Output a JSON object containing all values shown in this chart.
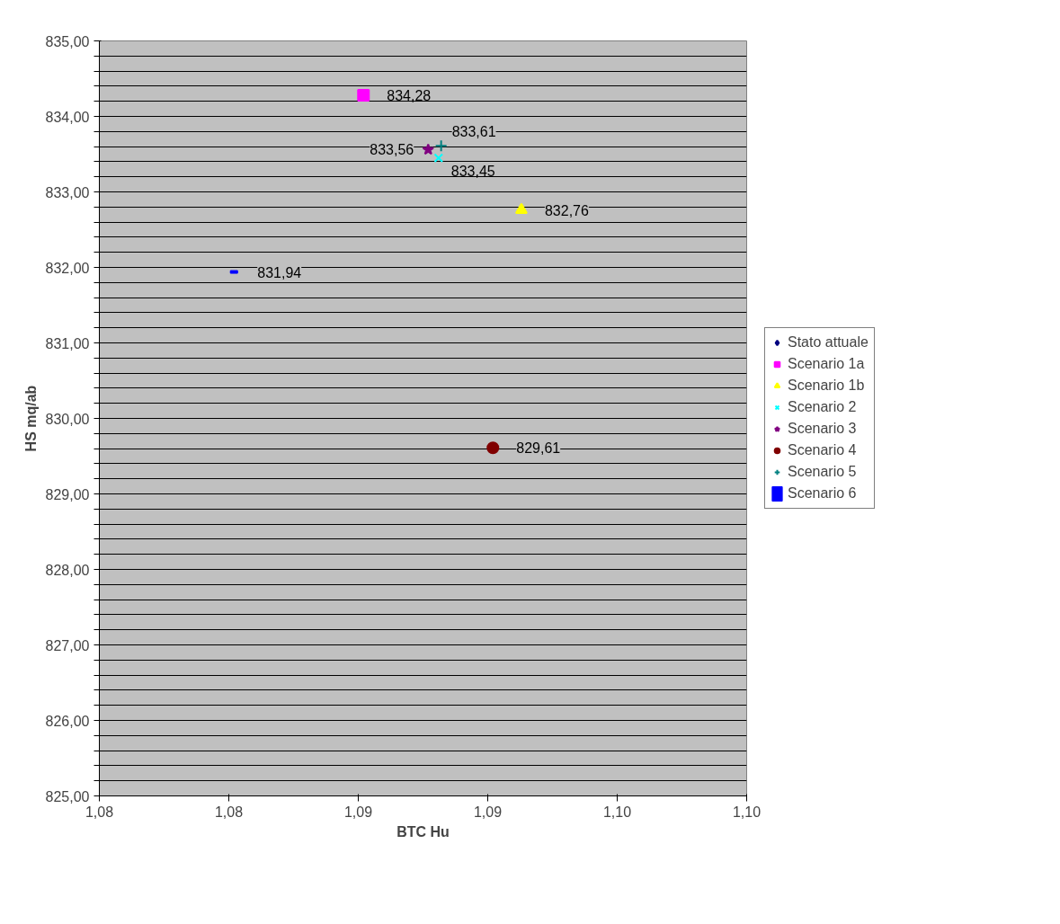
{
  "chart_data": {
    "type": "scatter",
    "xlabel": "BTC Hu",
    "ylabel": "HS mq/ab",
    "xlim": [
      1.075,
      1.1
    ],
    "xticks": [
      {
        "value": 1.075,
        "label": "1,08"
      },
      {
        "value": 1.08,
        "label": "1,08"
      },
      {
        "value": 1.085,
        "label": "1,09"
      },
      {
        "value": 1.09,
        "label": "1,09"
      },
      {
        "value": 1.095,
        "label": "1,10"
      },
      {
        "value": 1.1,
        "label": "1,10"
      }
    ],
    "ylim": [
      825,
      835
    ],
    "yticks": [
      {
        "value": 825,
        "label": "825,00"
      },
      {
        "value": 825.2,
        "label": null
      },
      {
        "value": 825.4,
        "label": null
      },
      {
        "value": 825.6,
        "label": null
      },
      {
        "value": 825.8,
        "label": null
      },
      {
        "value": 826,
        "label": "826,00"
      },
      {
        "value": 826.2,
        "label": null
      },
      {
        "value": 826.4,
        "label": null
      },
      {
        "value": 826.6,
        "label": null
      },
      {
        "value": 826.8,
        "label": null
      },
      {
        "value": 827,
        "label": "827,00"
      },
      {
        "value": 827.2,
        "label": null
      },
      {
        "value": 827.4,
        "label": null
      },
      {
        "value": 827.6,
        "label": null
      },
      {
        "value": 827.8,
        "label": null
      },
      {
        "value": 828,
        "label": "828,00"
      },
      {
        "value": 828.2,
        "label": null
      },
      {
        "value": 828.4,
        "label": null
      },
      {
        "value": 828.6,
        "label": null
      },
      {
        "value": 828.8,
        "label": null
      },
      {
        "value": 829,
        "label": "829,00"
      },
      {
        "value": 829.2,
        "label": null
      },
      {
        "value": 829.4,
        "label": null
      },
      {
        "value": 829.6,
        "label": null
      },
      {
        "value": 829.8,
        "label": null
      },
      {
        "value": 830,
        "label": "830,00"
      },
      {
        "value": 830.2,
        "label": null
      },
      {
        "value": 830.4,
        "label": null
      },
      {
        "value": 830.6,
        "label": null
      },
      {
        "value": 830.8,
        "label": null
      },
      {
        "value": 831,
        "label": "831,00"
      },
      {
        "value": 831.2,
        "label": null
      },
      {
        "value": 831.4,
        "label": null
      },
      {
        "value": 831.6,
        "label": null
      },
      {
        "value": 831.8,
        "label": null
      },
      {
        "value": 832,
        "label": "832,00"
      },
      {
        "value": 832.2,
        "label": null
      },
      {
        "value": 832.4,
        "label": null
      },
      {
        "value": 832.6,
        "label": null
      },
      {
        "value": 832.8,
        "label": null
      },
      {
        "value": 833,
        "label": "833,00"
      },
      {
        "value": 833.2,
        "label": null
      },
      {
        "value": 833.4,
        "label": null
      },
      {
        "value": 833.6,
        "label": null
      },
      {
        "value": 833.8,
        "label": null
      },
      {
        "value": 834,
        "label": "834,00"
      },
      {
        "value": 834.2,
        "label": null
      },
      {
        "value": 834.4,
        "label": null
      },
      {
        "value": 834.6,
        "label": null
      },
      {
        "value": 834.8,
        "label": null
      },
      {
        "value": 835,
        "label": "835,00"
      }
    ],
    "grid": "y",
    "legend": "right",
    "series": [
      {
        "name": "Stato attuale",
        "color": "#000080",
        "marker": "diamond",
        "x": [
          null
        ],
        "values": [
          null
        ]
      },
      {
        "name": "Scenario 1a",
        "color": "#ff00ff",
        "marker": "square",
        "x": [
          1.0852
        ],
        "values": [
          834.28
        ],
        "value_labels": [
          "834,28"
        ]
      },
      {
        "name": "Scenario 1b",
        "color": "#ffff00",
        "marker": "triangle",
        "x": [
          1.0913
        ],
        "values": [
          832.76
        ],
        "value_labels": [
          "832,76"
        ]
      },
      {
        "name": "Scenario 2",
        "color": "#00ffff",
        "marker": "x",
        "x": [
          1.0881
        ],
        "values": [
          833.45
        ],
        "value_labels": [
          "833,45"
        ]
      },
      {
        "name": "Scenario 3",
        "color": "#800080",
        "marker": "star",
        "x": [
          1.0877
        ],
        "values": [
          833.56
        ],
        "value_labels": [
          "833,56"
        ]
      },
      {
        "name": "Scenario 4",
        "color": "#800000",
        "marker": "circle",
        "x": [
          1.0902
        ],
        "values": [
          829.61
        ],
        "value_labels": [
          "829,61"
        ]
      },
      {
        "name": "Scenario 5",
        "color": "#008080",
        "marker": "cross",
        "x": [
          1.0882
        ],
        "values": [
          833.61
        ],
        "value_labels": [
          "833,61"
        ]
      },
      {
        "name": "Scenario 6",
        "color": "#0000ff",
        "x": [
          1.0802
        ],
        "values": [
          831.94
        ],
        "value_labels": [
          "831,94"
        ]
      }
    ]
  }
}
